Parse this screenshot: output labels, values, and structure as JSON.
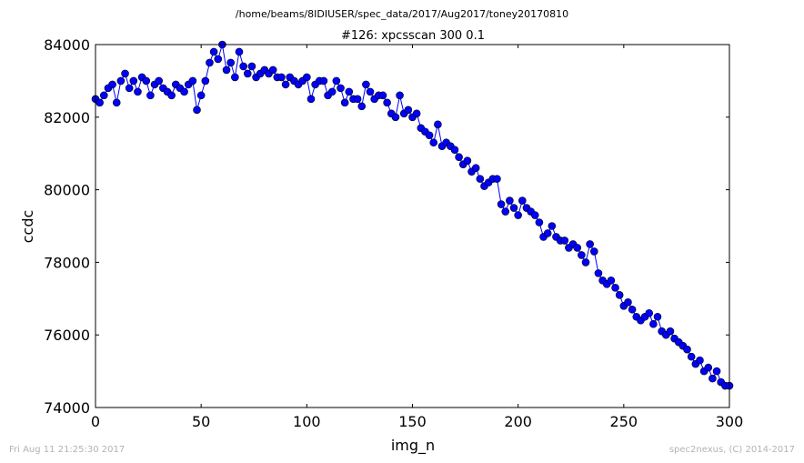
{
  "chart_data": {
    "type": "line",
    "suptitle": "/home/beams/8IDIUSER/spec_data/2017/Aug2017/toney20170810",
    "title": "#126: xpcsscan 300 0.1",
    "xlabel": "img_n",
    "ylabel": "ccdc",
    "xlim": [
      0,
      300
    ],
    "ylim": [
      74000,
      84000
    ],
    "xticks": [
      0,
      50,
      100,
      150,
      200,
      250,
      300
    ],
    "yticks": [
      74000,
      76000,
      78000,
      80000,
      82000,
      84000
    ],
    "grid": false,
    "legend": "none",
    "colors": {
      "series": "#0000ff",
      "marker_edge": "#000000",
      "footer": "#b3b3b3"
    },
    "series": [
      {
        "marker": "circle",
        "x": [
          0,
          2,
          4,
          6,
          8,
          10,
          12,
          14,
          16,
          18,
          20,
          22,
          24,
          26,
          28,
          30,
          32,
          34,
          36,
          38,
          40,
          42,
          44,
          46,
          48,
          50,
          52,
          54,
          56,
          58,
          60,
          62,
          64,
          66,
          68,
          70,
          72,
          74,
          76,
          78,
          80,
          82,
          84,
          86,
          88,
          90,
          92,
          94,
          96,
          98,
          100,
          102,
          104,
          106,
          108,
          110,
          112,
          114,
          116,
          118,
          120,
          122,
          124,
          126,
          128,
          130,
          132,
          134,
          136,
          138,
          140,
          142,
          144,
          146,
          148,
          150,
          152,
          154,
          156,
          158,
          160,
          162,
          164,
          166,
          168,
          170,
          172,
          174,
          176,
          178,
          180,
          182,
          184,
          186,
          188,
          190,
          192,
          194,
          196,
          198,
          200,
          202,
          204,
          206,
          208,
          210,
          212,
          214,
          216,
          218,
          220,
          222,
          224,
          226,
          228,
          230,
          232,
          234,
          236,
          238,
          240,
          242,
          244,
          246,
          248,
          250,
          252,
          254,
          256,
          258,
          260,
          262,
          264,
          266,
          268,
          270,
          272,
          274,
          276,
          278,
          280,
          282,
          284,
          286,
          288,
          290,
          292,
          294,
          296,
          298,
          300
        ],
        "y": [
          82500,
          82400,
          82600,
          82800,
          82900,
          82400,
          83000,
          83200,
          82800,
          83000,
          82700,
          83100,
          83000,
          82600,
          82900,
          83000,
          82800,
          82700,
          82600,
          82900,
          82800,
          82700,
          82900,
          83000,
          82200,
          82600,
          83000,
          83500,
          83800,
          83600,
          84000,
          83300,
          83500,
          83100,
          83800,
          83400,
          83200,
          83400,
          83100,
          83200,
          83300,
          83200,
          83300,
          83100,
          83100,
          82900,
          83100,
          83000,
          82900,
          83000,
          83100,
          82500,
          82900,
          83000,
          83000,
          82600,
          82700,
          83000,
          82800,
          82400,
          82700,
          82500,
          82500,
          82300,
          82900,
          82700,
          82500,
          82600,
          82600,
          82400,
          82100,
          82000,
          82600,
          82100,
          82200,
          82000,
          82100,
          81700,
          81600,
          81500,
          81300,
          81800,
          81200,
          81300,
          81200,
          81100,
          80900,
          80700,
          80800,
          80500,
          80600,
          80300,
          80100,
          80200,
          80300,
          80300,
          79600,
          79400,
          79700,
          79500,
          79300,
          79700,
          79500,
          79400,
          79300,
          79100,
          78700,
          78800,
          79000,
          78700,
          78600,
          78600,
          78400,
          78500,
          78400,
          78200,
          78000,
          78500,
          78300,
          77700,
          77500,
          77400,
          77500,
          77300,
          77100,
          76800,
          76900,
          76700,
          76500,
          76400,
          76500,
          76600,
          76300,
          76500,
          76100,
          76000,
          76100,
          75900,
          75800,
          75700,
          75600,
          75400,
          75200,
          75300,
          75000,
          75100,
          74800,
          75000,
          74700,
          74600,
          74600
        ]
      }
    ]
  },
  "footer": {
    "left": "Fri Aug 11 21:25:30 2017",
    "right": "spec2nexus, (C) 2014-2017"
  }
}
